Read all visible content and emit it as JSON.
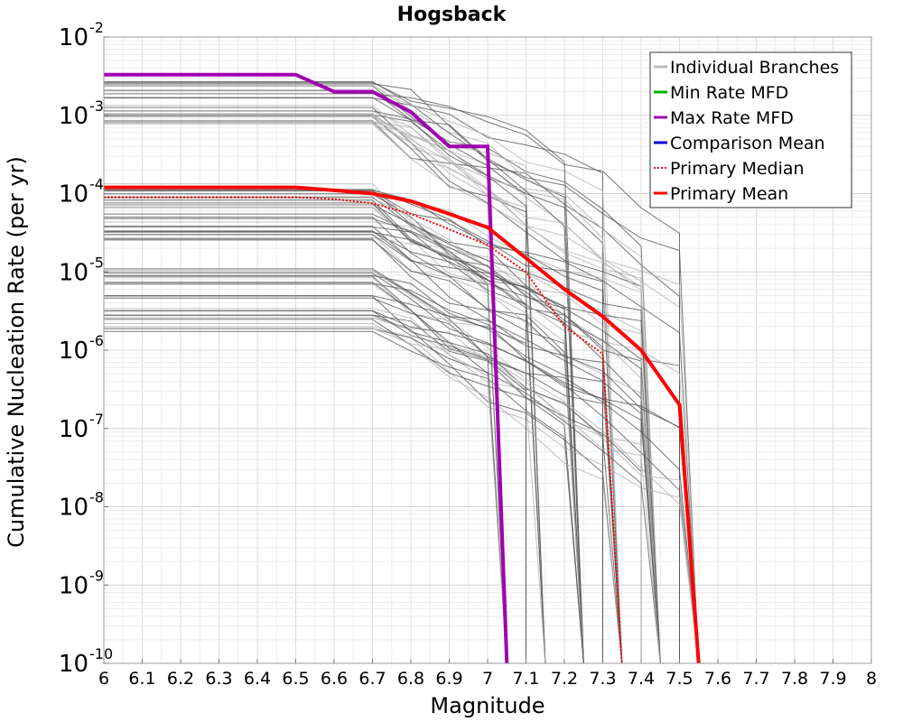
{
  "chart_data": {
    "type": "line",
    "title": "Hogsback",
    "xlabel": "Magnitude",
    "ylabel": "Cumulative Nucleation Rate (per yr)",
    "xlim": [
      6,
      8
    ],
    "ylim": [
      1e-10,
      0.01
    ],
    "yscale": "log",
    "grid": true,
    "legend_position": "top-right",
    "x_ticks": [
      "6",
      "6.1",
      "6.2",
      "6.3",
      "6.4",
      "6.5",
      "6.6",
      "6.7",
      "6.8",
      "6.9",
      "7",
      "7.1",
      "7.2",
      "7.3",
      "7.4",
      "7.5",
      "7.6",
      "7.7",
      "7.8",
      "7.9",
      "8"
    ],
    "y_ticks": [
      {
        "base": "10",
        "exp": "-10",
        "value": 1e-10
      },
      {
        "base": "10",
        "exp": "-9",
        "value": 1e-09
      },
      {
        "base": "10",
        "exp": "-8",
        "value": 1e-08
      },
      {
        "base": "10",
        "exp": "-7",
        "value": 1e-07
      },
      {
        "base": "10",
        "exp": "-6",
        "value": 1e-06
      },
      {
        "base": "10",
        "exp": "-5",
        "value": 1e-05
      },
      {
        "base": "10",
        "exp": "-4",
        "value": 0.0001
      },
      {
        "base": "10",
        "exp": "-3",
        "value": 0.001
      },
      {
        "base": "10",
        "exp": "-2",
        "value": 0.01
      }
    ],
    "legend": [
      {
        "label": "Individual Branches",
        "color": "#bbbbbb",
        "style": "solid"
      },
      {
        "label": "Min Rate MFD",
        "color": "#00b000",
        "style": "solid"
      },
      {
        "label": "Max Rate MFD",
        "color": "#a000b0",
        "style": "solid"
      },
      {
        "label": "Comparison Mean",
        "color": "#0000dd",
        "style": "solid"
      },
      {
        "label": " Primary Median",
        "color": "#ff0000",
        "style": "dotted"
      },
      {
        "label": "Primary Mean",
        "color": "#ff0000",
        "style": "solid"
      }
    ],
    "series": [
      {
        "name": "Max Rate MFD",
        "color": "#a000b0",
        "x": [
          6.0,
          6.5,
          6.6,
          6.7,
          6.8,
          6.9,
          7.0,
          7.05
        ],
        "y": [
          0.0033,
          0.0033,
          0.002,
          0.002,
          0.0011,
          0.0004,
          0.0004,
          1e-10
        ]
      },
      {
        "name": "Primary Median",
        "color": "#ff0000",
        "style": "dotted",
        "x": [
          6.0,
          6.5,
          6.6,
          6.7,
          6.8,
          6.9,
          7.0,
          7.1,
          7.2,
          7.3,
          7.35
        ],
        "y": [
          9e-05,
          9e-05,
          8.5e-05,
          7.5e-05,
          5.5e-05,
          3.5e-05,
          2.2e-05,
          1e-05,
          2e-06,
          9e-07,
          1e-10
        ]
      },
      {
        "name": "Primary Mean",
        "color": "#ff0000",
        "x": [
          6.0,
          6.5,
          6.6,
          6.7,
          6.8,
          6.9,
          7.0,
          7.1,
          7.2,
          7.3,
          7.4,
          7.5,
          7.55
        ],
        "y": [
          0.00012,
          0.00012,
          0.00011,
          0.0001,
          8e-05,
          5.5e-05,
          3.7e-05,
          1.5e-05,
          6e-06,
          2.7e-06,
          1e-06,
          2e-07,
          1e-10
        ]
      }
    ],
    "branch_bands": [
      {
        "y_low": 0.00075,
        "y_high": 0.0027,
        "count": 26
      },
      {
        "y_low": 2.5e-05,
        "y_high": 0.00014,
        "count": 30
      },
      {
        "y_low": 1.4e-06,
        "y_high": 1.2e-05,
        "count": 26
      }
    ]
  }
}
